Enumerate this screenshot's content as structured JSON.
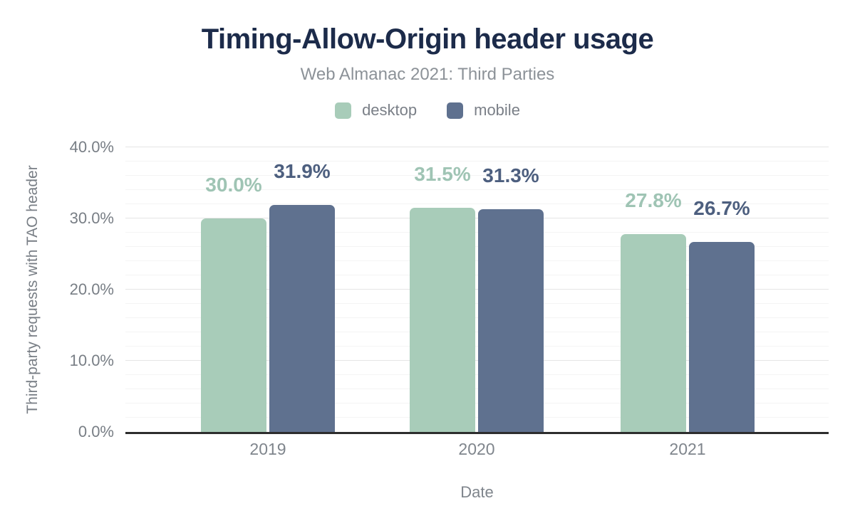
{
  "chart_data": {
    "type": "bar",
    "title": "Timing-Allow-Origin header usage",
    "subtitle": "Web Almanac 2021: Third Parties",
    "categories": [
      "2019",
      "2020",
      "2021"
    ],
    "series": [
      {
        "name": "desktop",
        "color": "#a8ccb9",
        "label_color": "#9fc4b4",
        "values": [
          30.0,
          31.5,
          27.8
        ],
        "labels": [
          "30.0%",
          "31.5%",
          "27.8%"
        ]
      },
      {
        "name": "mobile",
        "color": "#5f718f",
        "label_color": "#4d5f7f",
        "values": [
          31.9,
          31.3,
          26.7
        ],
        "labels": [
          "31.9%",
          "31.3%",
          "26.7%"
        ]
      }
    ],
    "xlabel": "Date",
    "ylabel": "Third-party requests with TAO header",
    "ylim": [
      0,
      40
    ],
    "yticks": [
      0,
      10,
      20,
      30,
      40
    ],
    "ytick_labels": [
      "0.0%",
      "10.0%",
      "20.0%",
      "30.0%",
      "40.0%"
    ],
    "minor_grid_step_pct": 2,
    "grid": "horizontal",
    "legend_position": "top",
    "title_color": "#1c2b4a",
    "subtitle_color": "#8c9298",
    "axis_line_color": "#2d2d2d"
  }
}
